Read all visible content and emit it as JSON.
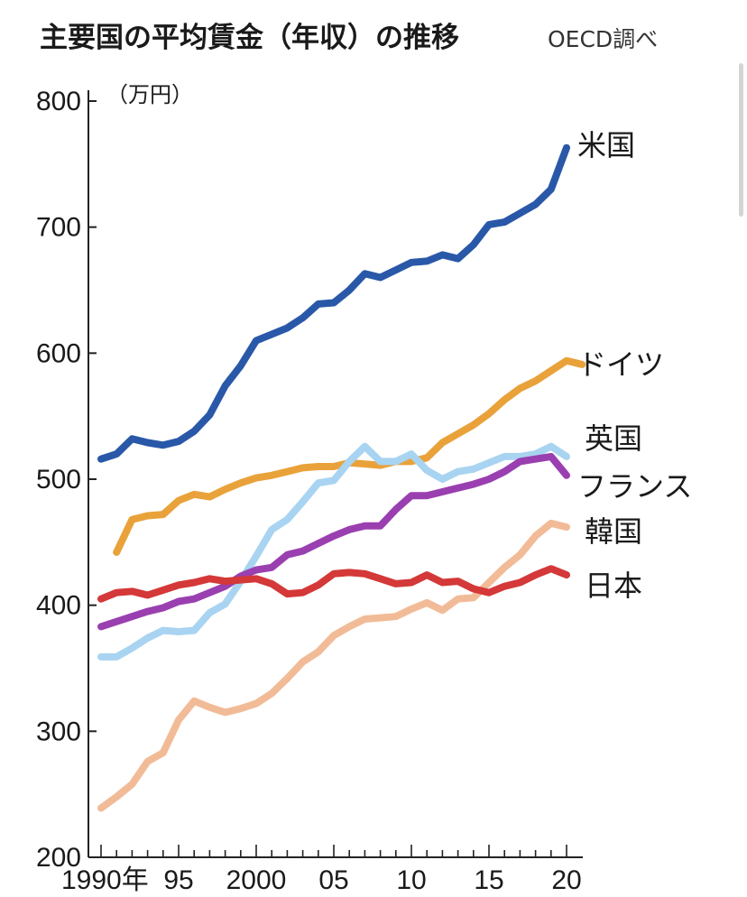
{
  "chart_data": {
    "type": "line",
    "title": "主要国の平均賃金（年収）の推移",
    "source": "OECD調べ",
    "ylabel": "（万円）",
    "xlabel": "",
    "ylim": [
      200,
      800
    ],
    "xlim": [
      1990,
      2020
    ],
    "yticks": [
      200,
      300,
      400,
      500,
      600,
      700,
      800
    ],
    "xticks": [
      1990,
      1995,
      2000,
      2005,
      2010,
      2015,
      2020
    ],
    "xtick_labels": [
      "1990年",
      "95",
      "2000",
      "05",
      "10",
      "15",
      "20"
    ],
    "grid": false,
    "legend": "inline labels at line ends (right)",
    "series": [
      {
        "name": "米国",
        "color": "#2a58a8",
        "start_year": 1990,
        "values": [
          516,
          520,
          532,
          529,
          527,
          530,
          538,
          551,
          574,
          590,
          610,
          615,
          620,
          628,
          639,
          640,
          650,
          663,
          660,
          666,
          672,
          673,
          678,
          675,
          686,
          702,
          704,
          711,
          718,
          730,
          763
        ]
      },
      {
        "name": "ドイツ",
        "color": "#e9a23a",
        "start_year": 1991,
        "values": [
          442,
          468,
          471,
          472,
          483,
          488,
          486,
          492,
          497,
          501,
          503,
          506,
          509,
          510,
          510,
          513,
          512,
          511,
          514,
          514,
          517,
          529,
          536,
          543,
          552,
          563,
          572,
          578,
          586,
          594,
          591
        ]
      },
      {
        "name": "英国",
        "color": "#a8d4f1",
        "start_year": 1990,
        "values": [
          359,
          359,
          366,
          374,
          380,
          379,
          380,
          394,
          401,
          419,
          439,
          460,
          468,
          482,
          497,
          499,
          514,
          526,
          514,
          514,
          520,
          507,
          500,
          506,
          508,
          513,
          518,
          518,
          520,
          526,
          518
        ]
      },
      {
        "name": "フランス",
        "color": "#9a3fb0",
        "start_year": 1990,
        "values": [
          383,
          387,
          391,
          395,
          398,
          403,
          405,
          410,
          415,
          423,
          428,
          430,
          440,
          443,
          449,
          455,
          460,
          463,
          463,
          476,
          487,
          487,
          490,
          493,
          496,
          500,
          506,
          514,
          516,
          518,
          503
        ]
      },
      {
        "name": "韓国",
        "color": "#f2bb97",
        "start_year": 1990,
        "values": [
          239,
          248,
          258,
          276,
          283,
          309,
          324,
          319,
          315,
          318,
          322,
          330,
          342,
          355,
          363,
          376,
          383,
          389,
          390,
          391,
          397,
          402,
          396,
          405,
          406,
          418,
          430,
          440,
          455,
          465,
          462
        ]
      },
      {
        "name": "日本",
        "color": "#d43838",
        "start_year": 1990,
        "values": [
          405,
          410,
          411,
          408,
          412,
          416,
          418,
          421,
          419,
          420,
          421,
          417,
          409,
          410,
          416,
          425,
          426,
          425,
          421,
          417,
          418,
          424,
          418,
          419,
          413,
          410,
          415,
          418,
          424,
          429,
          424
        ]
      }
    ]
  }
}
